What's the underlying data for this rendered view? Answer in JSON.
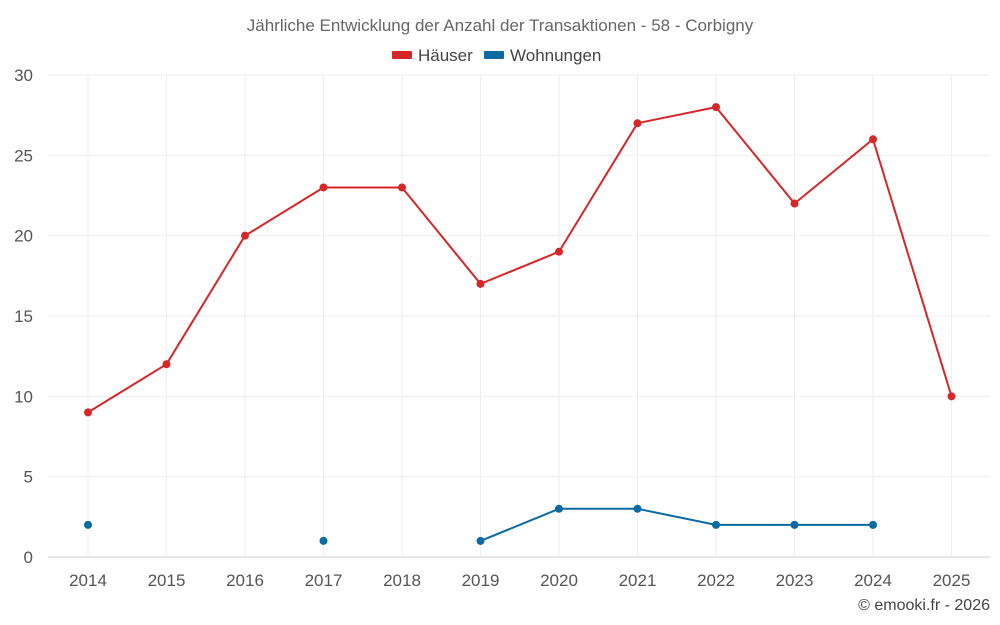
{
  "chart_data": {
    "type": "line",
    "title": "Jährliche Entwicklung der Anzahl der Transaktionen - 58 - Corbigny",
    "categories": [
      "2014",
      "2015",
      "2016",
      "2017",
      "2018",
      "2019",
      "2020",
      "2021",
      "2022",
      "2023",
      "2024",
      "2025"
    ],
    "ylim": [
      0,
      30
    ],
    "yticks": [
      0,
      5,
      10,
      15,
      20,
      25,
      30
    ],
    "grid": true,
    "legend_position": "top-center",
    "series": [
      {
        "name": "Häuser",
        "color": "#d62728",
        "values": [
          9,
          12,
          20,
          23,
          23,
          17,
          19,
          27,
          28,
          22,
          26,
          10
        ]
      },
      {
        "name": "Wohnungen",
        "color": "#0b6aa2",
        "values": [
          2,
          null,
          null,
          1,
          null,
          1,
          3,
          3,
          2,
          2,
          2,
          null
        ]
      }
    ]
  },
  "credit": "© emooki.fr - 2026"
}
